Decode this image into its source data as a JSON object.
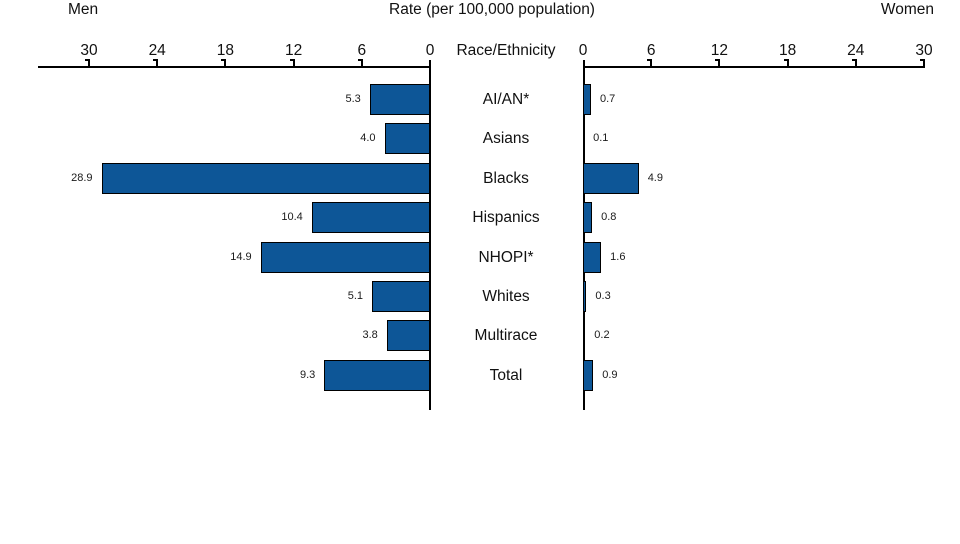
{
  "header": {
    "left_series_label": "Men",
    "right_series_label": "Women"
  },
  "chart_data": {
    "type": "bar",
    "orientation": "bidirectional-horizontal",
    "title": "Rate (per 100,000 population)",
    "axis_label": "Race/Ethnicity",
    "categories": [
      "AI/AN*",
      "Asians",
      "Blacks",
      "Hispanics",
      "NHOPI*",
      "Whites",
      "Multirace",
      "Total"
    ],
    "series": [
      {
        "name": "Men",
        "side": "left",
        "values": [
          5.3,
          4.0,
          28.9,
          10.4,
          14.9,
          5.1,
          3.8,
          9.3
        ]
      },
      {
        "name": "Women",
        "side": "right",
        "values": [
          0.7,
          0.1,
          4.9,
          0.8,
          1.6,
          0.3,
          0.2,
          0.9
        ]
      }
    ],
    "ticks": [
      0,
      6,
      12,
      18,
      24,
      30
    ],
    "xlim": [
      0,
      30
    ],
    "grid": false,
    "value_label_decimals": 1,
    "bar_color": "#0D5697",
    "bar_border_color": "#000000",
    "axis_color": "#000000"
  }
}
